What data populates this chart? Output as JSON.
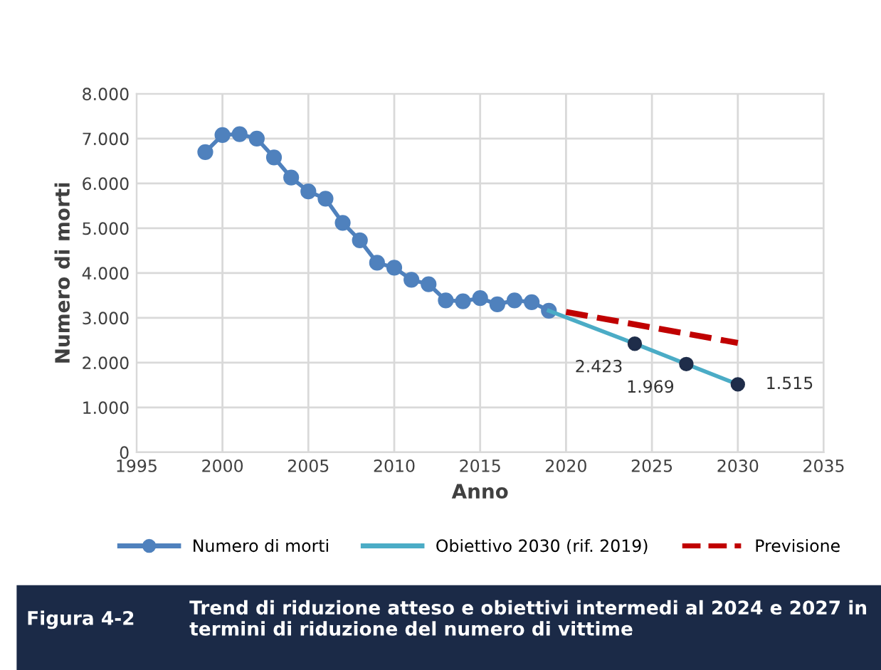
{
  "chart_data": {
    "type": "line",
    "xlabel": "Anno",
    "ylabel": "Numero di morti",
    "xlim": [
      1995,
      2035
    ],
    "xticks": [
      1995,
      2000,
      2005,
      2010,
      2015,
      2020,
      2025,
      2030,
      2035
    ],
    "ylim": [
      0,
      8000
    ],
    "yticks": [
      {
        "value": 0,
        "label": "0"
      },
      {
        "value": 1000,
        "label": "1.000"
      },
      {
        "value": 2000,
        "label": "2.000"
      },
      {
        "value": 3000,
        "label": "3.000"
      },
      {
        "value": 4000,
        "label": "4.000"
      },
      {
        "value": 5000,
        "label": "5.000"
      },
      {
        "value": 6000,
        "label": "6.000"
      },
      {
        "value": 7000,
        "label": "7.000"
      },
      {
        "value": 8000,
        "label": "8.000"
      }
    ],
    "grid": true,
    "legend": "bottom",
    "series": [
      {
        "name": "Numero di morti",
        "color": "#4f81bd",
        "marker": "circle",
        "line_style": "solid",
        "x": [
          1999,
          2000,
          2001,
          2002,
          2003,
          2004,
          2005,
          2006,
          2007,
          2008,
          2009,
          2010,
          2011,
          2012,
          2013,
          2014,
          2015,
          2016,
          2017,
          2018,
          2019
        ],
        "values": [
          6700,
          7080,
          7100,
          7000,
          6580,
          6130,
          5820,
          5660,
          5120,
          4730,
          4230,
          4120,
          3850,
          3750,
          3390,
          3370,
          3440,
          3300,
          3390,
          3350,
          3160
        ]
      },
      {
        "name": "Obiettivo 2030 (rif. 2019)",
        "color": "#4bacc6",
        "marker": "none",
        "line_style": "solid",
        "x": [
          2019,
          2024,
          2027,
          2030
        ],
        "values": [
          3160,
          2423,
          1969,
          1515
        ]
      },
      {
        "name": "Previsione",
        "color": "#c00000",
        "marker": "none",
        "line_style": "dashed",
        "x": [
          2020,
          2030
        ],
        "values": [
          3130,
          2440
        ]
      },
      {
        "type": "scatter",
        "color": "#1f2d4a",
        "marker": "circle",
        "x": [
          2024,
          2027,
          2030
        ],
        "values": [
          2423,
          1969,
          1515
        ],
        "value_labels": [
          "2.423",
          "1.969",
          "1.515"
        ]
      }
    ],
    "annotations": [
      "Figura 4-2",
      "Trend di riduzione atteso e obiettivi intermedi al 2024 e 2027 in termini di riduzione del numero di vittime"
    ]
  }
}
